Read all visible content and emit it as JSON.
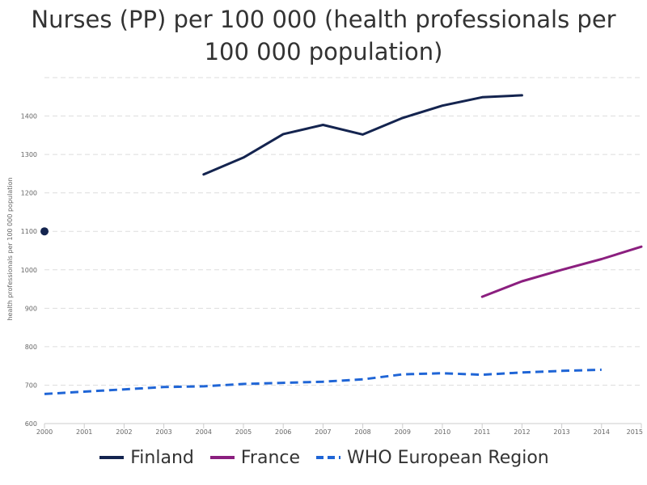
{
  "chart_data": {
    "type": "line",
    "title_lines": [
      "Nurses (PP) per 100 000 (health professionals per",
      "100 000 population)"
    ],
    "xlabel": "",
    "ylabel": "health professionals per 100 000 population",
    "ylim": [
      600,
      1500
    ],
    "yticks": [
      600,
      700,
      800,
      900,
      1000,
      1100,
      1200,
      1300,
      1400
    ],
    "x_ticks": [
      "2000",
      "2001",
      "2002",
      "2003",
      "2004",
      "2005",
      "2006",
      "2007",
      "2008",
      "2009",
      "2010",
      "2011",
      "2012",
      "2013",
      "2014",
      "2015"
    ],
    "grid": true,
    "legend_position": "bottom",
    "series": [
      {
        "name": "Finland",
        "color": "#14244f",
        "style": "solid",
        "points": [
          [
            2000,
            1100
          ],
          [
            2004,
            1248
          ],
          [
            2005,
            1292
          ],
          [
            2006,
            1353
          ],
          [
            2007,
            1377
          ],
          [
            2008,
            1352
          ],
          [
            2009,
            1395
          ],
          [
            2010,
            1427
          ],
          [
            2011,
            1449
          ],
          [
            2012,
            1454
          ]
        ]
      },
      {
        "name": "France",
        "color": "#8b1f7f",
        "style": "solid",
        "points": [
          [
            2011,
            930
          ],
          [
            2012,
            970
          ],
          [
            2013,
            1000
          ],
          [
            2014,
            1028
          ],
          [
            2015,
            1060
          ]
        ]
      },
      {
        "name": "WHO European Region",
        "color": "#1f65d6",
        "style": "dashed",
        "points": [
          [
            2000,
            677
          ],
          [
            2001,
            683
          ],
          [
            2002,
            689
          ],
          [
            2003,
            695
          ],
          [
            2004,
            697
          ],
          [
            2005,
            703
          ],
          [
            2006,
            706
          ],
          [
            2007,
            709
          ],
          [
            2008,
            715
          ],
          [
            2009,
            728
          ],
          [
            2010,
            731
          ],
          [
            2011,
            727
          ],
          [
            2012,
            733
          ],
          [
            2013,
            737
          ],
          [
            2014,
            740
          ]
        ]
      }
    ]
  }
}
